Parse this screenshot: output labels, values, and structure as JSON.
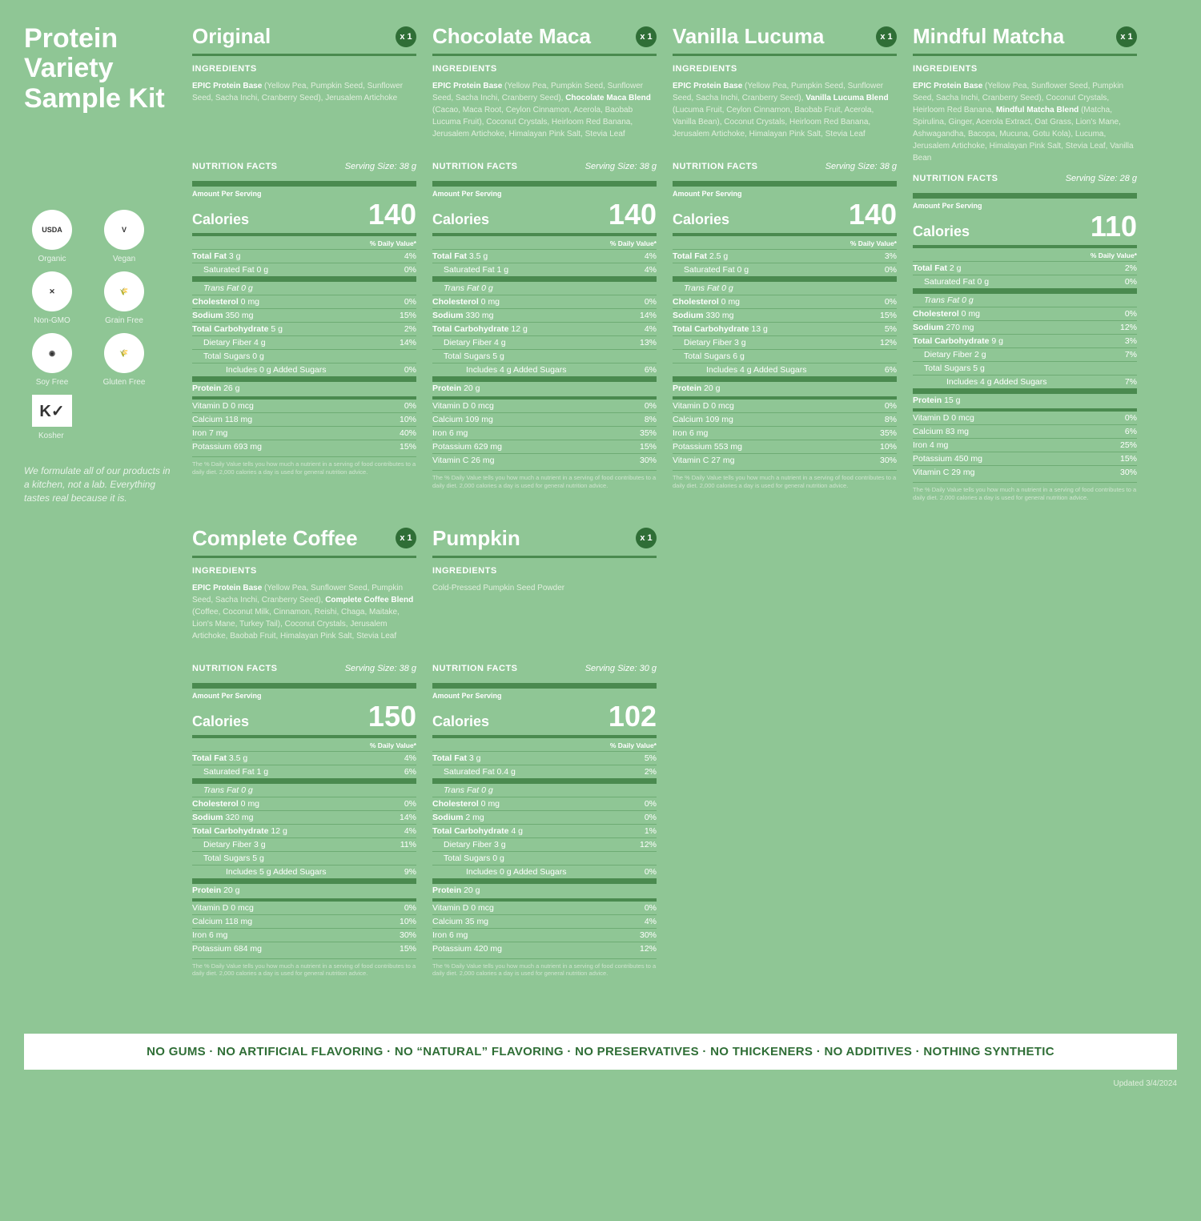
{
  "page_title": "Protein Variety Sample Kit",
  "badges": [
    {
      "label": "Organic",
      "icon": "USDA"
    },
    {
      "label": "Vegan",
      "icon": "V"
    },
    {
      "label": "Non-GMO",
      "icon": "✕"
    },
    {
      "label": "Grain Free",
      "icon": "🌾"
    },
    {
      "label": "Soy Free",
      "icon": "◉"
    },
    {
      "label": "Gluten Free",
      "icon": "🌾"
    }
  ],
  "kosher_label": "Kosher",
  "kosher_mark": "K✓",
  "tagline": "We formulate all of our products in a kitchen, not a lab. Everything tastes real because it is.",
  "quantity_prefix": "x",
  "ingredients_heading": "INGREDIENTS",
  "nf_heading": "NUTRITION FACTS",
  "serving_prefix": "Serving Size: ",
  "aps": "Amount Per Serving",
  "cal_label": "Calories",
  "dv_header": "% Daily Value*",
  "base_text": "EPIC Protein Base",
  "footnote": "The % Daily Value tells you how much a nutrient in a serving of food contributes to a daily diet. 2,000 calories a day is used for general nutrition advice.",
  "bottom_bar": "NO GUMS  ·  NO ARTIFICIAL FLAVORING  ·  NO “NATURAL” FLAVORING  ·  NO PRESERVATIVES  ·  NO THICKENERS  ·  NO ADDITIVES  ·  NOTHING SYNTHETIC",
  "updated": "Updated 3/4/2024",
  "products": [
    {
      "name": "Original",
      "qty": 1,
      "serving": "38 g",
      "base_detail": " (Yellow Pea, Pumpkin Seed, Sunflower Seed, Sacha Inchi, Cranberry Seed), Jerusalem Artichoke",
      "blend_bold": "",
      "blend_rest": "",
      "cal": "140",
      "rows": [
        [
          "b",
          "Total Fat",
          "3 g",
          "4%"
        ],
        [
          "i1",
          "Saturated Fat 0 g",
          "",
          "0%"
        ],
        [
          "i1 ital",
          "Trans Fat 0 g",
          "",
          ""
        ],
        [
          "b",
          "Cholesterol",
          "0 mg",
          "0%"
        ],
        [
          "b",
          "Sodium",
          "350 mg",
          "15%"
        ],
        [
          "b",
          "Total Carbohydrate",
          "5 g",
          "2%"
        ],
        [
          "i1",
          "Dietary Fiber 4 g",
          "",
          "14%"
        ],
        [
          "i1",
          "Total Sugars 0 g",
          "",
          ""
        ],
        [
          "i2",
          "Includes 0 g Added Sugars",
          "",
          "0%"
        ],
        [
          "bt",
          "Protein",
          "26 g",
          ""
        ]
      ],
      "vits": [
        [
          "Vitamin D  0 mcg",
          "0%"
        ],
        [
          "Calcium  118 mg",
          "10%"
        ],
        [
          "Iron  7 mg",
          "40%"
        ],
        [
          "Potassium  693 mg",
          "15%"
        ]
      ]
    },
    {
      "name": "Chocolate Maca",
      "qty": 1,
      "serving": "38 g",
      "base_detail": " (Yellow Pea, Pumpkin Seed, Sunflower Seed, Sacha Inchi, Cranberry Seed), ",
      "blend_bold": "Chocolate Maca Blend",
      "blend_rest": " (Cacao, Maca Root, Ceylon Cinnamon, Acerola, Baobab Lucuma Fruit), Coconut Crystals, Heirloom Red Banana, Jerusalem Artichoke, Himalayan Pink Salt, Stevia Leaf",
      "cal": "140",
      "rows": [
        [
          "b",
          "Total Fat",
          "3.5 g",
          "4%"
        ],
        [
          "i1",
          "Saturated Fat 1 g",
          "",
          "4%"
        ],
        [
          "i1 ital",
          "Trans Fat 0 g",
          "",
          ""
        ],
        [
          "b",
          "Cholesterol",
          "0 mg",
          "0%"
        ],
        [
          "b",
          "Sodium",
          "330 mg",
          "14%"
        ],
        [
          "b",
          "Total Carbohydrate",
          "12 g",
          "4%"
        ],
        [
          "i1",
          "Dietary Fiber 4 g",
          "",
          "13%"
        ],
        [
          "i1",
          "Total Sugars 5 g",
          "",
          ""
        ],
        [
          "i2",
          "Includes 4 g Added Sugars",
          "",
          "6%"
        ],
        [
          "bt",
          "Protein",
          "20 g",
          ""
        ]
      ],
      "vits": [
        [
          "Vitamin D  0 mcg",
          "0%"
        ],
        [
          "Calcium  109 mg",
          "8%"
        ],
        [
          "Iron  6 mg",
          "35%"
        ],
        [
          "Potassium  629 mg",
          "15%"
        ],
        [
          "Vitamin C  26 mg",
          "30%"
        ]
      ]
    },
    {
      "name": "Vanilla Lucuma",
      "qty": 1,
      "serving": "38 g",
      "base_detail": " (Yellow Pea, Pumpkin Seed, Sunflower Seed, Sacha Inchi, Cranberry Seed), ",
      "blend_bold": "Vanilla Lucuma Blend",
      "blend_rest": " (Lucuma Fruit, Ceylon Cinnamon, Baobab Fruit, Acerola, Vanilla Bean), Coconut Crystals, Heirloom Red Banana, Jerusalem Artichoke, Himalayan Pink Salt, Stevia Leaf",
      "cal": "140",
      "rows": [
        [
          "b",
          "Total Fat",
          "2.5 g",
          "3%"
        ],
        [
          "i1",
          "Saturated Fat 0 g",
          "",
          "0%"
        ],
        [
          "i1 ital",
          "Trans Fat 0 g",
          "",
          ""
        ],
        [
          "b",
          "Cholesterol",
          "0 mg",
          "0%"
        ],
        [
          "b",
          "Sodium",
          "330 mg",
          "15%"
        ],
        [
          "b",
          "Total Carbohydrate",
          "13 g",
          "5%"
        ],
        [
          "i1",
          "Dietary Fiber 3 g",
          "",
          "12%"
        ],
        [
          "i1",
          "Total Sugars 6 g",
          "",
          ""
        ],
        [
          "i2",
          "Includes 4 g Added Sugars",
          "",
          "6%"
        ],
        [
          "bt",
          "Protein",
          "20 g",
          ""
        ]
      ],
      "vits": [
        [
          "Vitamin D  0 mcg",
          "0%"
        ],
        [
          "Calcium  109 mg",
          "8%"
        ],
        [
          "Iron  6 mg",
          "35%"
        ],
        [
          "Potassium  553 mg",
          "10%"
        ],
        [
          "Vitamin C  27 mg",
          "30%"
        ]
      ]
    },
    {
      "name": "Mindful Matcha",
      "qty": 1,
      "serving": "28 g",
      "base_detail": " (Yellow Pea, Sunflower Seed, Pumpkin Seed, Sacha Inchi, Cranberry Seed), Coconut Crystals, Heirloom Red Banana, ",
      "blend_bold": "Mindful Matcha Blend",
      "blend_rest": " (Matcha, Spirulina, Ginger, Acerola Extract, Oat Grass, Lion's Mane, Ashwagandha, Bacopa, Mucuna, Gotu Kola), Lucuma, Jerusalem Artichoke, Himalayan Pink Salt, Stevia Leaf, Vanilla Bean",
      "cal": "110",
      "rows": [
        [
          "b",
          "Total Fat",
          "2 g",
          "2%"
        ],
        [
          "i1",
          "Saturated Fat 0 g",
          "",
          "0%"
        ],
        [
          "i1 ital",
          "Trans Fat 0 g",
          "",
          ""
        ],
        [
          "b",
          "Cholesterol",
          "0 mg",
          "0%"
        ],
        [
          "b",
          "Sodium",
          "270 mg",
          "12%"
        ],
        [
          "b",
          "Total Carbohydrate",
          "9 g",
          "3%"
        ],
        [
          "i1",
          "Dietary Fiber 2 g",
          "",
          "7%"
        ],
        [
          "i1",
          "Total Sugars 5 g",
          "",
          ""
        ],
        [
          "i2",
          "Includes 4 g Added Sugars",
          "",
          "7%"
        ],
        [
          "bt",
          "Protein",
          "15 g",
          ""
        ]
      ],
      "vits": [
        [
          "Vitamin D  0 mcg",
          "0%"
        ],
        [
          "Calcium  83 mg",
          "6%"
        ],
        [
          "Iron  4 mg",
          "25%"
        ],
        [
          "Potassium  450 mg",
          "15%"
        ],
        [
          "Vitamin C  29 mg",
          "30%"
        ]
      ]
    },
    {
      "name": "Complete Coffee",
      "qty": 1,
      "serving": "38 g",
      "base_detail": " (Yellow Pea, Sunflower Seed, Pumpkin Seed, Sacha Inchi, Cranberry Seed), ",
      "blend_bold": "Complete Coffee Blend",
      "blend_rest": " (Coffee, Coconut Milk, Cinnamon, Reishi, Chaga, Maitake, Lion's Mane, Turkey Tail), Coconut Crystals, Jerusalem Artichoke, Baobab Fruit, Himalayan Pink Salt, Stevia Leaf",
      "cal": "150",
      "rows": [
        [
          "b",
          "Total Fat",
          "3.5 g",
          "4%"
        ],
        [
          "i1",
          "Saturated Fat 1 g",
          "",
          "6%"
        ],
        [
          "i1 ital",
          "Trans Fat 0 g",
          "",
          ""
        ],
        [
          "b",
          "Cholesterol",
          "0 mg",
          "0%"
        ],
        [
          "b",
          "Sodium",
          "320 mg",
          "14%"
        ],
        [
          "b",
          "Total Carbohydrate",
          "12 g",
          "4%"
        ],
        [
          "i1",
          "Dietary Fiber 3 g",
          "",
          "11%"
        ],
        [
          "i1",
          "Total Sugars 5 g",
          "",
          ""
        ],
        [
          "i2",
          "Includes 5 g Added Sugars",
          "",
          "9%"
        ],
        [
          "bt",
          "Protein",
          "20 g",
          ""
        ]
      ],
      "vits": [
        [
          "Vitamin D  0 mcg",
          "0%"
        ],
        [
          "Calcium  118 mg",
          "10%"
        ],
        [
          "Iron  6 mg",
          "30%"
        ],
        [
          "Potassium  684 mg",
          "15%"
        ]
      ]
    },
    {
      "name": "Pumpkin",
      "qty": 1,
      "serving": "30 g",
      "plain_ingredients": "Cold-Pressed Pumpkin Seed Powder",
      "cal": "102",
      "rows": [
        [
          "b",
          "Total Fat",
          "3 g",
          "5%"
        ],
        [
          "i1",
          "Saturated Fat 0.4 g",
          "",
          "2%"
        ],
        [
          "i1 ital",
          "Trans Fat 0 g",
          "",
          ""
        ],
        [
          "b",
          "Cholesterol",
          "0 mg",
          "0%"
        ],
        [
          "b",
          "Sodium",
          "2 mg",
          "0%"
        ],
        [
          "b",
          "Total Carbohydrate",
          "4 g",
          "1%"
        ],
        [
          "i1",
          "Dietary Fiber 3 g",
          "",
          "12%"
        ],
        [
          "i1",
          "Total Sugars 0 g",
          "",
          ""
        ],
        [
          "i2",
          "Includes 0 g Added Sugars",
          "",
          "0%"
        ],
        [
          "bt",
          "Protein",
          "20 g",
          ""
        ]
      ],
      "vits": [
        [
          "Vitamin D  0 mcg",
          "0%"
        ],
        [
          "Calcium  35 mg",
          "4%"
        ],
        [
          "Iron  6 mg",
          "30%"
        ],
        [
          "Potassium  420 mg",
          "12%"
        ]
      ]
    }
  ]
}
